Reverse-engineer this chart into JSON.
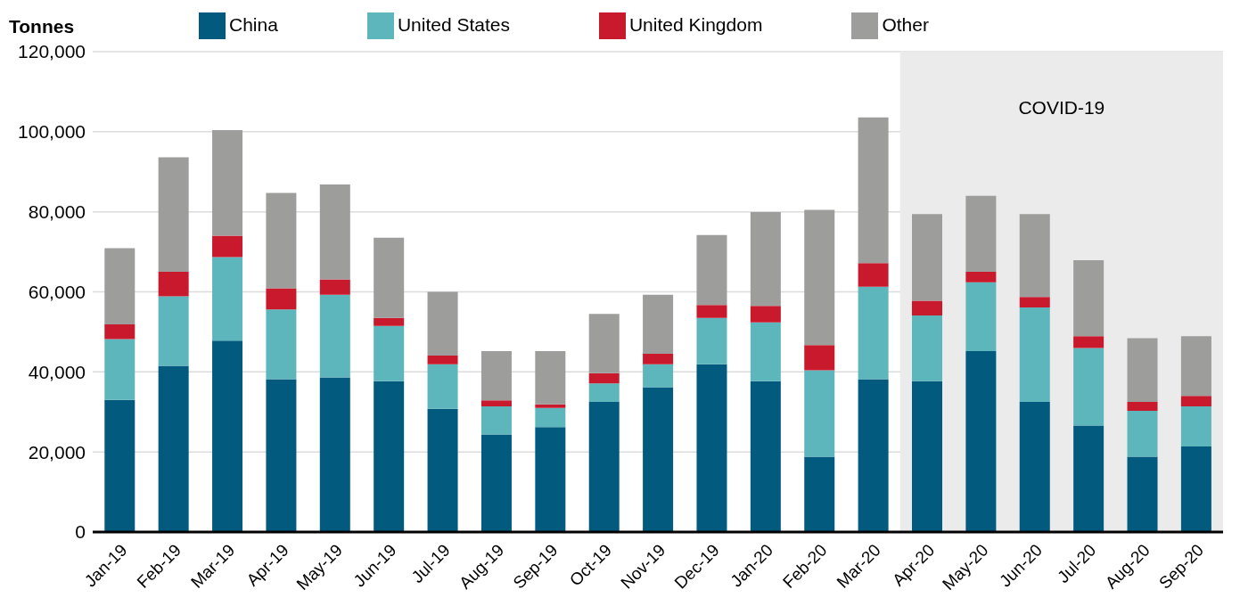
{
  "chart_data": {
    "type": "bar",
    "stacked": true,
    "ylabel": "Tonnes",
    "categories": [
      "Jan-19",
      "Feb-19",
      "Mar-19",
      "Apr-19",
      "May-19",
      "Jun-19",
      "Jul-19",
      "Aug-19",
      "Sep-19",
      "Oct-19",
      "Nov-19",
      "Dec-19",
      "Jan-20",
      "Feb-20",
      "Mar-20",
      "Apr-20",
      "May-20",
      "Jun-20",
      "Jul-20",
      "Aug-20",
      "Sep-20"
    ],
    "series": [
      {
        "name": "China",
        "color": "#025b7f",
        "values": [
          33000,
          41500,
          47800,
          38200,
          38600,
          37700,
          30800,
          24400,
          26200,
          32500,
          36200,
          41900,
          37700,
          18800,
          38200,
          37700,
          45200,
          32500,
          26600,
          18800,
          21400
        ]
      },
      {
        "name": "United States",
        "color": "#5eb6bd",
        "values": [
          15200,
          17400,
          20900,
          17400,
          20700,
          13800,
          11100,
          7000,
          4800,
          4600,
          5700,
          11600,
          14700,
          21600,
          23100,
          16400,
          17200,
          23600,
          19400,
          11500,
          10000
        ]
      },
      {
        "name": "United Kingdom",
        "color": "#c8192d",
        "values": [
          3700,
          6100,
          5300,
          5300,
          3800,
          2000,
          2200,
          1500,
          900,
          2600,
          2600,
          3200,
          4100,
          6300,
          5900,
          3700,
          2600,
          2600,
          2900,
          2200,
          2600
        ]
      },
      {
        "name": "Other",
        "color": "#9d9d9c",
        "values": [
          19000,
          28600,
          26400,
          23800,
          23700,
          20000,
          15900,
          12300,
          13300,
          14800,
          14800,
          17500,
          23400,
          33800,
          36400,
          21600,
          19000,
          20700,
          19000,
          15900,
          14900
        ]
      }
    ],
    "ylim": [
      0,
      120000
    ],
    "yticks": [
      0,
      {
        "value": 20000,
        "label": "20,000"
      },
      {
        "value": 40000,
        "label": "40,000"
      },
      {
        "value": 60000,
        "label": "60,000"
      },
      {
        "value": 80000,
        "label": "80,000"
      },
      {
        "value": 100000,
        "label": "100,000"
      },
      {
        "value": 120000,
        "label": "120,000"
      }
    ],
    "grid": "y",
    "legend": "top",
    "bands": [
      {
        "axis": "x",
        "from": "Apr-20",
        "to": "Sep-20",
        "label": "COVID-19",
        "color": "#ebebeb"
      }
    ]
  }
}
